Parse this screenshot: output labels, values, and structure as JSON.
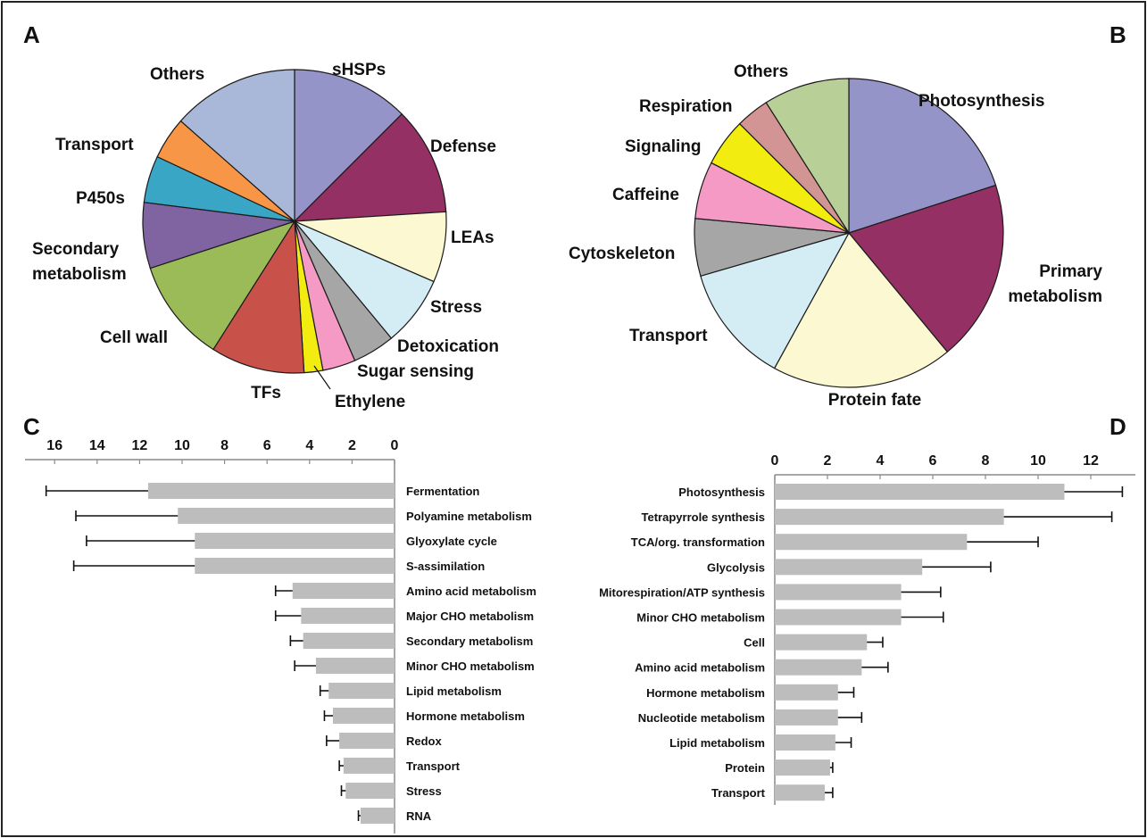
{
  "chart_data": [
    {
      "panel": "A",
      "type": "pie",
      "slices": [
        {
          "label": "sHSPs",
          "value": 12.5,
          "color": "#9494c8"
        },
        {
          "label": "Defense",
          "value": 11.5,
          "color": "#943063"
        },
        {
          "label": "LEAs",
          "value": 7.5,
          "color": "#fcf8d2"
        },
        {
          "label": "Stress",
          "value": 7.5,
          "color": "#d4ecf3"
        },
        {
          "label": "Detoxication",
          "value": 4.5,
          "color": "#a6a6a6"
        },
        {
          "label": "Sugar sensing",
          "value": 3.5,
          "color": "#f49ac4"
        },
        {
          "label": "Ethylene",
          "value": 2,
          "color": "#f2ec10"
        },
        {
          "label": "TFs",
          "value": 10,
          "color": "#c8524a"
        },
        {
          "label": "Cell wall",
          "value": 11,
          "color": "#9bbb59"
        },
        {
          "label": "Secondary metabolism",
          "value": 7,
          "color": "#8064a2"
        },
        {
          "label": "P450s",
          "value": 5,
          "color": "#3aa6c6"
        },
        {
          "label": "Transport",
          "value": 4.5,
          "color": "#f79646"
        },
        {
          "label": "Others",
          "value": 13.5,
          "color": "#a9b8d8"
        }
      ]
    },
    {
      "panel": "B",
      "type": "pie",
      "slices": [
        {
          "label": "Photosynthesis",
          "value": 20,
          "color": "#9494c8"
        },
        {
          "label": "Primary metabolism",
          "value": 19,
          "color": "#943063"
        },
        {
          "label": "Protein fate",
          "value": 19,
          "color": "#fcf8d2"
        },
        {
          "label": "Transport",
          "value": 12.5,
          "color": "#d4ecf3"
        },
        {
          "label": "Cytoskeleton",
          "value": 6,
          "color": "#a6a6a6"
        },
        {
          "label": "Caffeine",
          "value": 6,
          "color": "#f49ac4"
        },
        {
          "label": "Signaling",
          "value": 5,
          "color": "#f2ec10"
        },
        {
          "label": "Respiration",
          "value": 3.5,
          "color": "#d39494"
        },
        {
          "label": "Others",
          "value": 9,
          "color": "#b9cf98"
        }
      ]
    },
    {
      "panel": "C",
      "type": "bar",
      "orientation": "horizontal",
      "direction": "reversed",
      "xlim": [
        0,
        17
      ],
      "xticks": [
        "16",
        "14",
        "12",
        "10",
        "8",
        "6",
        "4",
        "2",
        "0"
      ],
      "categories": [
        "Fermentation",
        "Polyamine metabolism",
        "Glyoxylate cycle",
        "S-assimilation",
        "Amino acid metabolism",
        "Major CHO metabolism",
        "Secondary metabolism",
        "Minor CHO metabolism",
        "Lipid metabolism",
        "Hormone metabolism",
        "Redox",
        "Transport",
        "Stress",
        "RNA"
      ],
      "values": [
        11.6,
        10.2,
        9.4,
        9.4,
        4.8,
        4.4,
        4.3,
        3.7,
        3.1,
        2.9,
        2.6,
        2.4,
        2.3,
        1.6
      ],
      "errors": [
        4.8,
        4.8,
        5.1,
        5.7,
        0.8,
        1.2,
        0.6,
        1.0,
        0.4,
        0.4,
        0.6,
        0.2,
        0.2,
        0.1
      ],
      "bar_color": "#bdbdbd"
    },
    {
      "panel": "D",
      "type": "bar",
      "orientation": "horizontal",
      "xlim": [
        0,
        13.5
      ],
      "xticks": [
        "0",
        "2",
        "4",
        "6",
        "8",
        "10",
        "12"
      ],
      "categories": [
        "Photosynthesis",
        "Tetrapyrrole synthesis",
        "TCA/org. transformation",
        "Glycolysis",
        "Mitorespiration/ATP synthesis",
        "Minor CHO metabolism",
        "Cell",
        "Amino acid metabolism",
        "Hormone metabolism",
        "Nucleotide metabolism",
        "Lipid metabolism",
        "Protein",
        "Transport"
      ],
      "values": [
        11.0,
        8.7,
        7.3,
        5.6,
        4.8,
        4.8,
        3.5,
        3.3,
        2.4,
        2.4,
        2.3,
        2.1,
        1.9
      ],
      "errors": [
        2.2,
        4.1,
        2.7,
        2.6,
        1.5,
        1.6,
        0.6,
        1.0,
        0.6,
        0.9,
        0.6,
        0.1,
        0.3
      ],
      "bar_color": "#bdbdbd"
    }
  ],
  "panels": {
    "a": "A",
    "b": "B",
    "c": "C",
    "d": "D"
  }
}
